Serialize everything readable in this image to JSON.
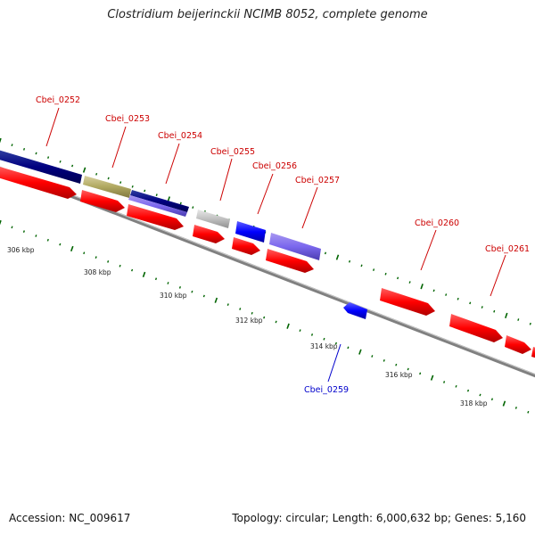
{
  "title": "Clostridium beijerinckii NCIMB 8052, complete genome",
  "footer": {
    "accession": "Accession: NC_009617",
    "summary": "Topology: circular; Length: 6,000,632 bp; Genes: 5,160"
  },
  "colors": {
    "forward_cds": "#ff0000",
    "reverse_cds": "#0000ff",
    "dark_navy": "#000080",
    "olive": "#b0a860",
    "slate": "#7b68ee",
    "gray": "#c0c0c0",
    "label_red": "#cc0000",
    "label_blue": "#0000cc",
    "tick_green": "#006400",
    "backbone": "#808080"
  },
  "scale": {
    "labels": [
      "306 kbp",
      "308 kbp",
      "310 kbp",
      "312 kbp",
      "314 kbp",
      "316 kbp",
      "318 kbp"
    ]
  },
  "genes": [
    {
      "id": "Cbei_0252",
      "label": "Cbei_0252",
      "strand": "forward",
      "color": "label_red"
    },
    {
      "id": "Cbei_0253",
      "label": "Cbei_0253",
      "strand": "forward",
      "color": "label_red"
    },
    {
      "id": "Cbei_0254",
      "label": "Cbei_0254",
      "strand": "forward",
      "color": "label_red"
    },
    {
      "id": "Cbei_0255",
      "label": "Cbei_0255",
      "strand": "forward",
      "color": "label_red"
    },
    {
      "id": "Cbei_0256",
      "label": "Cbei_0256",
      "strand": "forward",
      "color": "label_red"
    },
    {
      "id": "Cbei_0257",
      "label": "Cbei_0257",
      "strand": "forward",
      "color": "label_red"
    },
    {
      "id": "Cbei_0259",
      "label": "Cbei_0259",
      "strand": "reverse",
      "color": "label_blue"
    },
    {
      "id": "Cbei_0260",
      "label": "Cbei_0260",
      "strand": "forward",
      "color": "label_red"
    },
    {
      "id": "Cbei_0261",
      "label": "Cbei_0261",
      "strand": "forward",
      "color": "label_red"
    }
  ]
}
